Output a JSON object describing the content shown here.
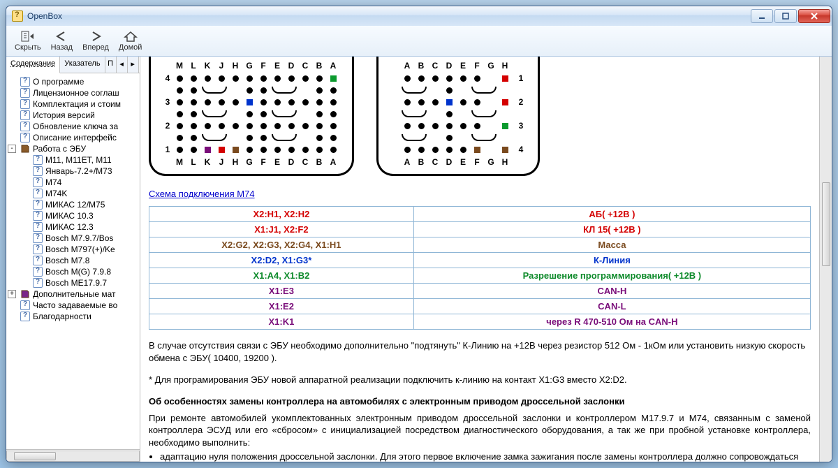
{
  "app": {
    "title": "OpenBox"
  },
  "toolbar": [
    {
      "key": "hide",
      "label": "Скрыть"
    },
    {
      "key": "back",
      "label": "Назад"
    },
    {
      "key": "fwd",
      "label": "Вперед"
    },
    {
      "key": "home",
      "label": "Домой"
    }
  ],
  "tabs": {
    "contents": "Содержание",
    "index": "Указатель",
    "p": "П"
  },
  "tree": [
    {
      "t": "q",
      "pad": 1,
      "label": "О программе"
    },
    {
      "t": "q",
      "pad": 1,
      "label": "Лицензионное соглаш"
    },
    {
      "t": "q",
      "pad": 1,
      "label": "Комплектация и стоим"
    },
    {
      "t": "q",
      "pad": 1,
      "label": "История версий"
    },
    {
      "t": "q",
      "pad": 1,
      "label": "Обновление ключа за"
    },
    {
      "t": "q",
      "pad": 1,
      "label": "Описание интерфейс"
    },
    {
      "t": "book",
      "pad": 0,
      "exp": "-",
      "label": "Работа с ЭБУ"
    },
    {
      "t": "q",
      "pad": 2,
      "label": "М11, М11ЕТ, М11"
    },
    {
      "t": "q",
      "pad": 2,
      "label": "Январь-7.2+/М73"
    },
    {
      "t": "q",
      "pad": 2,
      "label": "М74"
    },
    {
      "t": "q",
      "pad": 2,
      "label": "М74K"
    },
    {
      "t": "q",
      "pad": 2,
      "label": "МИКАС 12/М75"
    },
    {
      "t": "q",
      "pad": 2,
      "label": "МИКАС 10.3"
    },
    {
      "t": "q",
      "pad": 2,
      "label": "МИКАС 12.3"
    },
    {
      "t": "q",
      "pad": 2,
      "label": "Bosch M7.9.7/Bos"
    },
    {
      "t": "q",
      "pad": 2,
      "label": "Bosch M797(+)/Ke"
    },
    {
      "t": "q",
      "pad": 2,
      "label": "Bosch M7.8"
    },
    {
      "t": "q",
      "pad": 2,
      "label": "Bosch M(G) 7.9.8"
    },
    {
      "t": "q",
      "pad": 2,
      "label": "Bosch ME17.9.7"
    },
    {
      "t": "book",
      "pad": 0,
      "exp": "+",
      "color": "#7a2689",
      "label": "Дополнительные мат"
    },
    {
      "t": "q",
      "pad": 1,
      "label": "Часто задаваемые во"
    },
    {
      "t": "q",
      "pad": 1,
      "label": "Благодарности"
    }
  ],
  "connectorLeft": {
    "cols": [
      "M",
      "L",
      "K",
      "J",
      "H",
      "G",
      "F",
      "E",
      "D",
      "C",
      "B",
      "A"
    ],
    "rows": [
      "4",
      "3",
      "2",
      "1"
    ],
    "grid": [
      [
        "d",
        "d",
        "d",
        "d",
        "d",
        "d",
        "d",
        "d",
        "d",
        "d",
        "d",
        "green"
      ],
      [
        "d",
        "d",
        "arc",
        "",
        "",
        "d",
        "d",
        "arc",
        "",
        "",
        "d",
        "d"
      ],
      [
        "d",
        "d",
        "d",
        "d",
        "d",
        "blue",
        "d",
        "d",
        "d",
        "d",
        "d",
        "d"
      ],
      [
        "d",
        "d",
        "arc",
        "",
        "",
        "d",
        "d",
        "arc",
        "",
        "",
        "d",
        "d"
      ],
      [
        "d",
        "d",
        "d",
        "d",
        "d",
        "d",
        "d",
        "d",
        "d",
        "d",
        "d",
        "d"
      ],
      [
        "d",
        "d",
        "arc",
        "",
        "",
        "d",
        "d",
        "arc",
        "",
        "",
        "d",
        "d"
      ],
      [
        "d",
        "d",
        "purple",
        "red",
        "brown",
        "d",
        "d",
        "d",
        "d",
        "d",
        "d",
        "d"
      ]
    ]
  },
  "connectorRight": {
    "cols": [
      "A",
      "B",
      "C",
      "D",
      "E",
      "F",
      "G",
      "H"
    ],
    "rows": [
      "1",
      "2",
      "3",
      "4"
    ],
    "grid": [
      [
        "d",
        "d",
        "d",
        "d",
        "d",
        "d",
        "",
        "red"
      ],
      [
        "arc",
        "",
        "",
        "d",
        "",
        "arc",
        "",
        "",
        ""
      ],
      [
        "d",
        "d",
        "d",
        "blue",
        "d",
        "d",
        "",
        "red"
      ],
      [
        "arc",
        "",
        "",
        "d",
        "",
        "arc",
        "",
        "",
        ""
      ],
      [
        "d",
        "d",
        "d",
        "d",
        "d",
        "d",
        "",
        "green"
      ],
      [
        "arc",
        "",
        "",
        "d",
        "",
        "arc",
        "",
        "",
        ""
      ],
      [
        "d",
        "d",
        "d",
        "d",
        "d",
        "brown",
        "",
        "brown"
      ]
    ]
  },
  "linkText": "Схема подключения М74",
  "tableRows": [
    {
      "l": "X2:H1, X2:H2",
      "r": "АБ( +12В )",
      "cls": "c-red"
    },
    {
      "l": "X1:J1, X2:F2",
      "r": "КЛ 15( +12В )",
      "cls": "c-red"
    },
    {
      "l": "X2:G2, X2:G3, X2:G4, X1:H1",
      "r": "Масса",
      "cls": "c-brown"
    },
    {
      "l": "X2:D2, X1:G3*",
      "r": "К-Линия",
      "cls": "c-blue"
    },
    {
      "l": "X1:A4, X1:B2",
      "r": "Разрешение программирования( +12В )",
      "cls": "c-green"
    },
    {
      "l": "X1:E3",
      "r": "CAN-H",
      "cls": "c-purple"
    },
    {
      "l": "X1:E2",
      "r": "CAN-L",
      "cls": "c-purple"
    },
    {
      "l": "X1:K1",
      "r": "через R 470-510 Ом на CAN-H",
      "cls": "c-purple"
    }
  ],
  "text1": "В случае отсутствия связи с ЭБУ необходимо дополнительно \"подтянуть\" К-Линию на +12В через резистор 512 Ом - 1кОм или установить низкую скорость обмена с ЭБУ( 10400, 19200 ).",
  "text2": "* Для програмирования ЭБУ новой аппаратной реализации подключить к-линию на контакт X1:G3 вместо X2:D2.",
  "heading": "Об особенностях замены контроллера на автомобилях с электронным приводом дроссельной заслонки",
  "text3": "При ремонте автомобилей укомплектованных электронным приводом дроссельной заслонки и контроллером М17.9.7 и М74, связанным с заменой контроллера ЭСУД или его «сбросом» с инициализацией посредством диагностического оборудования, а так же при пробной установке контроллера, необходимо выполнить:",
  "bullet": "адаптацию нуля положения дроссельной заслонки. Для этого первое включение замка зажигания после замены контроллера должно сопровождаться",
  "colors": {
    "green": "#0b9a2e",
    "blue": "#0033cc",
    "red": "#d40000",
    "brown": "#7a4a1e",
    "purple": "#7a0e7a"
  }
}
